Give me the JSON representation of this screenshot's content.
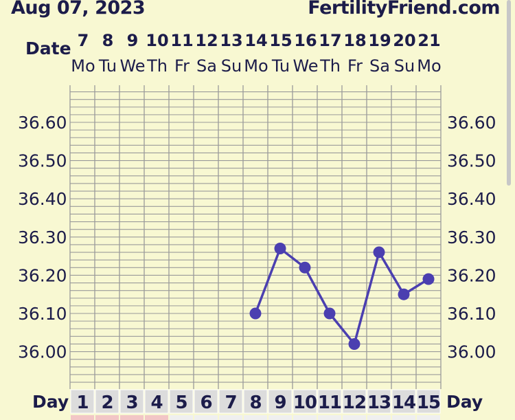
{
  "header": {
    "date_text": "Aug 07, 2023",
    "site_name": "FertilityFriend.com"
  },
  "colors": {
    "background": "#f8f8d2",
    "grid": "#9a9a9a",
    "line": "#4b3fb0",
    "point": "#4b3fb0",
    "text": "#1c1c4a",
    "day_cell": "#dcdcdc",
    "day_cell_pink": "#f2c6c6"
  },
  "chart_data": {
    "type": "line",
    "title": "",
    "date_row_label": "Date",
    "day_row_label": "Day",
    "dates": [
      "7",
      "8",
      "9",
      "10",
      "11",
      "12",
      "13",
      "14",
      "15",
      "16",
      "17",
      "18",
      "19",
      "20",
      "21"
    ],
    "weekdays": [
      "Mo",
      "Tu",
      "We",
      "Th",
      "Fr",
      "Sa",
      "Su",
      "Mo",
      "Tu",
      "We",
      "Th",
      "Fr",
      "Sa",
      "Su",
      "Mo"
    ],
    "days": [
      "1",
      "2",
      "3",
      "4",
      "5",
      "6",
      "7",
      "8",
      "9",
      "10",
      "11",
      "12",
      "13",
      "14",
      "15"
    ],
    "ytick_labels": [
      "36.60",
      "36.50",
      "36.40",
      "36.30",
      "36.20",
      "36.10",
      "36.00"
    ],
    "ylim": [
      35.905,
      36.685
    ],
    "grid": true,
    "series": [
      {
        "x": [
          8,
          9,
          10,
          11,
          12,
          13,
          14,
          15
        ],
        "values": [
          36.1,
          36.27,
          36.22,
          36.1,
          36.02,
          36.26,
          36.15,
          36.19
        ]
      }
    ]
  }
}
